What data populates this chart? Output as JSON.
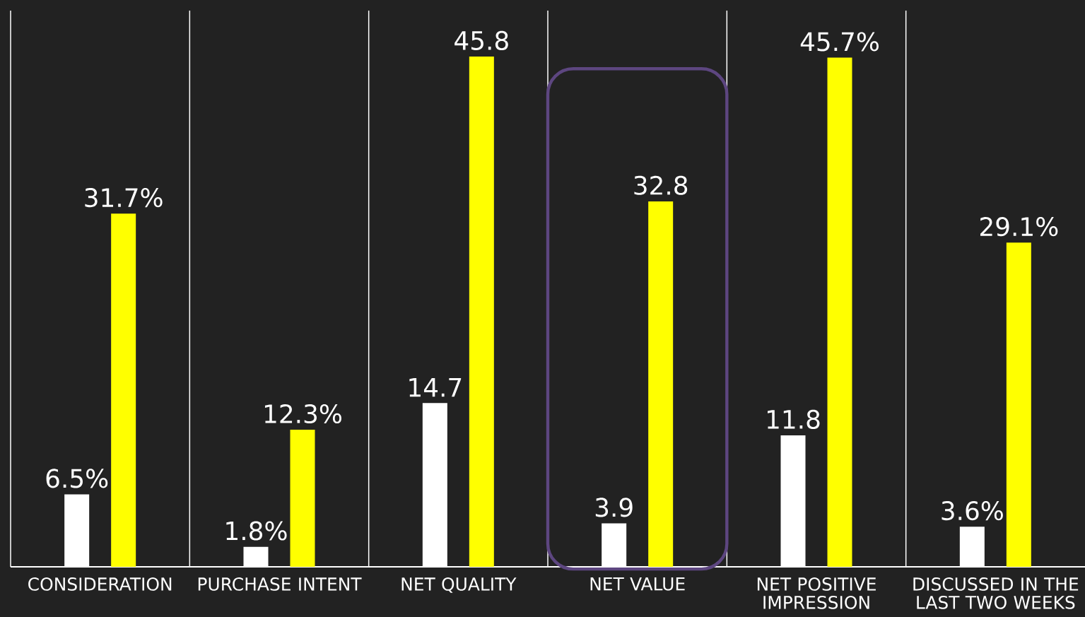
{
  "chart_data": {
    "type": "bar",
    "categories": [
      "CONSIDERATION",
      "PURCHASE INTENT",
      "NET QUALITY",
      "NET VALUE",
      "NET POSITIVE IMPRESSION",
      "DISCUSSED IN THE LAST TWO WEEKS"
    ],
    "series": [
      {
        "color": "#ffffff",
        "values": [
          6.5,
          1.8,
          14.7,
          3.9,
          11.8,
          3.6
        ],
        "value_labels": [
          "6.5%",
          "1.8%",
          "14.7",
          "3.9",
          "11.8",
          "3.6%"
        ]
      },
      {
        "color": "#ffff00",
        "values": [
          31.7,
          12.3,
          45.8,
          32.8,
          45.7,
          29.1
        ],
        "value_labels": [
          "31.7%",
          "12.3%",
          "45.8",
          "32.8",
          "45.7%",
          "29.1%"
        ]
      }
    ],
    "grid": "x"
  }
}
